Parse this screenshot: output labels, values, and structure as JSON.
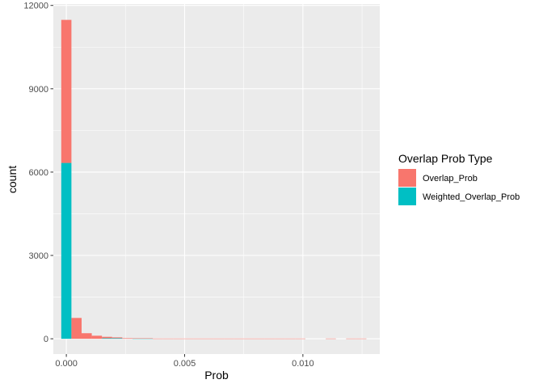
{
  "chart_data": {
    "type": "bar",
    "subtype": "stacked-histogram",
    "title": "",
    "xlabel": "Prob",
    "ylabel": "count",
    "xlim": [
      -0.00055,
      0.01325
    ],
    "ylim": [
      -550,
      12050
    ],
    "x_ticks": [
      0.0,
      0.005,
      0.01
    ],
    "x_tick_labels": [
      "0.000",
      "0.005",
      "0.010"
    ],
    "y_ticks": [
      0,
      3000,
      6000,
      9000,
      12000
    ],
    "y_tick_labels": [
      "0",
      "3000",
      "6000",
      "9000",
      "12000"
    ],
    "grid": true,
    "bin_width": 0.00043,
    "bin_starts": [
      -0.000215,
      0.000215,
      0.000645,
      0.001075,
      0.001505,
      0.001935,
      0.002365,
      0.002795,
      0.003225,
      0.003655,
      0.004085,
      0.004515,
      0.004945,
      0.005375,
      0.005805,
      0.006235,
      0.006665,
      0.007095,
      0.007525,
      0.007955,
      0.008385,
      0.008815,
      0.009245,
      0.009675,
      0.010105,
      0.010535,
      0.010965,
      0.011395,
      0.011825,
      0.012255
    ],
    "legend": {
      "title": "Overlap Prob Type",
      "position": "right"
    },
    "series": [
      {
        "name": "Overlap_Prob",
        "color": "#F8766D",
        "values": [
          5150,
          750,
          200,
          110,
          50,
          30,
          20,
          8,
          8,
          8,
          8,
          8,
          8,
          8,
          8,
          8,
          8,
          8,
          8,
          8,
          8,
          8,
          8,
          8,
          0,
          0,
          8,
          0,
          8,
          8
        ]
      },
      {
        "name": "Weighted_Overlap_Prob",
        "color": "#00BFC4",
        "values": [
          6330,
          0,
          0,
          0,
          20,
          20,
          0,
          10,
          10,
          0,
          0,
          0,
          0,
          0,
          0,
          0,
          0,
          0,
          0,
          0,
          0,
          0,
          0,
          0,
          0,
          0,
          0,
          0,
          0,
          0
        ]
      }
    ],
    "stack_order": [
      "Weighted_Overlap_Prob",
      "Overlap_Prob"
    ],
    "panel_background": "#EBEBEB",
    "grid_color": "#FFFFFF"
  }
}
